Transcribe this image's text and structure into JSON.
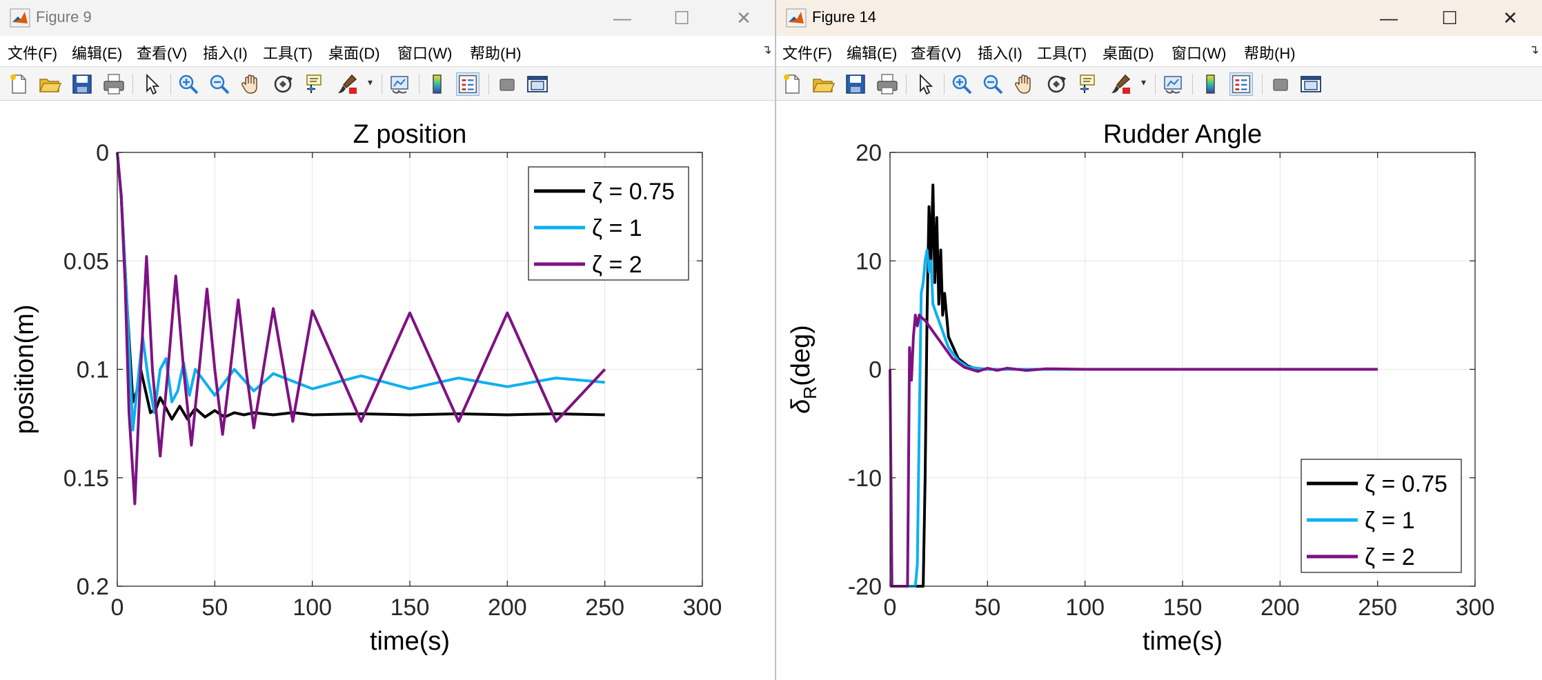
{
  "menu_labels": [
    "文件(F)",
    "编辑(E)",
    "查看(V)",
    "插入(I)",
    "工具(T)",
    "桌面(D)",
    "窗口(W)",
    "帮助(H)"
  ],
  "window_controls": {
    "minimize": "—",
    "maximize": "☐",
    "close": "✕"
  },
  "colors": {
    "black": "#000000",
    "cyan": "#0EB0F0",
    "purple": "#7E1282",
    "grid": "#E6E6E6"
  },
  "figures": [
    {
      "title": "Figure 9",
      "chart_data": {
        "type": "line",
        "title": "Z position",
        "xlabel": "time(s)",
        "ylabel": "position(m)",
        "xlim": [
          0,
          300
        ],
        "ylim": [
          0,
          0.2
        ],
        "y_reversed": true,
        "grid": true,
        "xticks": [
          0,
          50,
          100,
          150,
          200,
          250,
          300
        ],
        "xtick_labels": [
          "0",
          "50",
          "100",
          "150",
          "200",
          "250",
          "300"
        ],
        "yticks": [
          0,
          0.05,
          0.1,
          0.15,
          0.2
        ],
        "ytick_labels": [
          "0",
          "0.05",
          "0.1",
          "0.15",
          "0.2"
        ],
        "legend_position": "top-right",
        "series": [
          {
            "name": "ζ = 0.75",
            "color": "#000000",
            "x": [
              0,
              2,
              5,
              8,
              10,
              12,
              14,
              17,
              20,
              22,
              25,
              28,
              32,
              36,
              40,
              45,
              50,
              55,
              60,
              65,
              70,
              80,
              90,
              100,
              125,
              150,
              175,
              200,
              225,
              250
            ],
            "y": [
              0,
              0.02,
              0.07,
              0.115,
              0.11,
              0.1,
              0.108,
              0.12,
              0.118,
              0.113,
              0.118,
              0.123,
              0.117,
              0.123,
              0.118,
              0.122,
              0.119,
              0.122,
              0.12,
              0.121,
              0.12,
              0.121,
              0.12,
              0.121,
              0.1205,
              0.121,
              0.1205,
              0.121,
              0.1205,
              0.121
            ]
          },
          {
            "name": "ζ = 1",
            "color": "#0EB0F0",
            "x": [
              0,
              2,
              5,
              8,
              10,
              13,
              16,
              19,
              22,
              25,
              28,
              31,
              34,
              37,
              40,
              50,
              60,
              70,
              80,
              100,
              125,
              150,
              175,
              200,
              225,
              250
            ],
            "y": [
              0,
              0.02,
              0.07,
              0.128,
              0.11,
              0.085,
              0.105,
              0.12,
              0.1,
              0.095,
              0.115,
              0.11,
              0.097,
              0.112,
              0.1,
              0.112,
              0.1,
              0.11,
              0.102,
              0.109,
              0.103,
              0.109,
              0.104,
              0.108,
              0.104,
              0.106
            ]
          },
          {
            "name": "ζ = 2",
            "color": "#7E1282",
            "x": [
              0,
              2,
              4,
              6,
              9,
              12,
              15,
              18,
              22,
              26,
              30,
              34,
              38,
              42,
              46,
              50,
              54,
              58,
              62,
              66,
              70,
              80,
              90,
              100,
              125,
              150,
              175,
              200,
              225,
              250
            ],
            "y": [
              0,
              0.02,
              0.06,
              0.12,
              0.162,
              0.1,
              0.048,
              0.1,
              0.14,
              0.1,
              0.057,
              0.1,
              0.135,
              0.1,
              0.063,
              0.1,
              0.13,
              0.1,
              0.068,
              0.1,
              0.127,
              0.072,
              0.124,
              0.073,
              0.124,
              0.074,
              0.124,
              0.074,
              0.124,
              0.1
            ]
          }
        ]
      }
    },
    {
      "title": "Figure 14",
      "chart_data": {
        "type": "line",
        "title": "Rudder Angle",
        "xlabel": "time(s)",
        "ylabel": "δ",
        "ylabel_subscript": "R",
        "ylabel_suffix": "(deg)",
        "xlim": [
          0,
          300
        ],
        "ylim": [
          -20,
          20
        ],
        "grid": true,
        "xticks": [
          0,
          50,
          100,
          150,
          200,
          250,
          300
        ],
        "xtick_labels": [
          "0",
          "50",
          "100",
          "150",
          "200",
          "250",
          "300"
        ],
        "yticks": [
          -20,
          -10,
          0,
          10,
          20
        ],
        "ytick_labels": [
          "-20",
          "-10",
          "0",
          "10",
          "20"
        ],
        "legend_position": "bottom-right",
        "series": [
          {
            "name": "ζ = 0.75",
            "color": "#000000",
            "x": [
              0,
              14,
              17,
              18,
              19,
              20,
              21,
              22,
              23,
              24,
              25,
              26,
              27,
              28,
              30,
              35,
              40,
              45,
              50,
              250
            ],
            "y": [
              -20,
              -20,
              -20,
              -10,
              5,
              15,
              10,
              17,
              8,
              14,
              6,
              11,
              5,
              7,
              3,
              1,
              0.3,
              0,
              0,
              0
            ]
          },
          {
            "name": "ζ = 1",
            "color": "#0EB0F0",
            "x": [
              0,
              13,
              14,
              15,
              16,
              17,
              18,
              19,
              20,
              21,
              22,
              24,
              26,
              28,
              30,
              35,
              40,
              50,
              250
            ],
            "y": [
              -20,
              -20,
              -18,
              -5,
              7,
              8,
              10,
              11,
              9,
              10,
              6,
              5,
              4,
              3,
              2,
              0.8,
              0.2,
              0,
              0
            ]
          },
          {
            "name": "ζ = 2",
            "color": "#7E1282",
            "x": [
              0,
              1,
              9,
              10,
              11,
              12,
              13,
              14,
              15,
              16,
              18,
              20,
              24,
              28,
              32,
              38,
              45,
              50,
              55,
              60,
              70,
              80,
              100,
              150,
              200,
              250
            ],
            "y": [
              0,
              -20,
              -20,
              2,
              -1,
              3,
              5,
              4,
              5,
              4.8,
              4.5,
              4,
              3,
              2,
              1,
              0.2,
              -0.2,
              0.1,
              -0.1,
              0.1,
              -0.1,
              0.05,
              0,
              0,
              0,
              0
            ]
          }
        ]
      }
    }
  ]
}
